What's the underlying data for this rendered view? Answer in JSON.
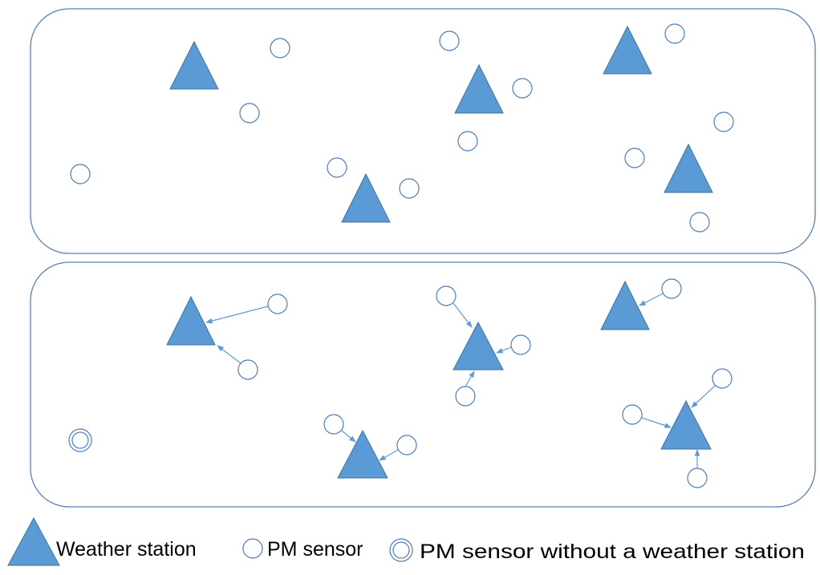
{
  "legend": {
    "weather_station": "Weather station",
    "pm_sensor": "PM sensor",
    "pm_sensor_no_station": "PM sensor without a weather station"
  },
  "colors": {
    "station_fill": "#5b9bd5",
    "station_stroke": "#41719c",
    "sensor_stroke": "#4f7db3",
    "panel_stroke": "#5b7fb0",
    "arrow": "#5b9bd5"
  },
  "icons": [
    "weather-station-triangle-icon",
    "pm-sensor-circle-icon",
    "pm-sensor-double-circle-icon"
  ]
}
